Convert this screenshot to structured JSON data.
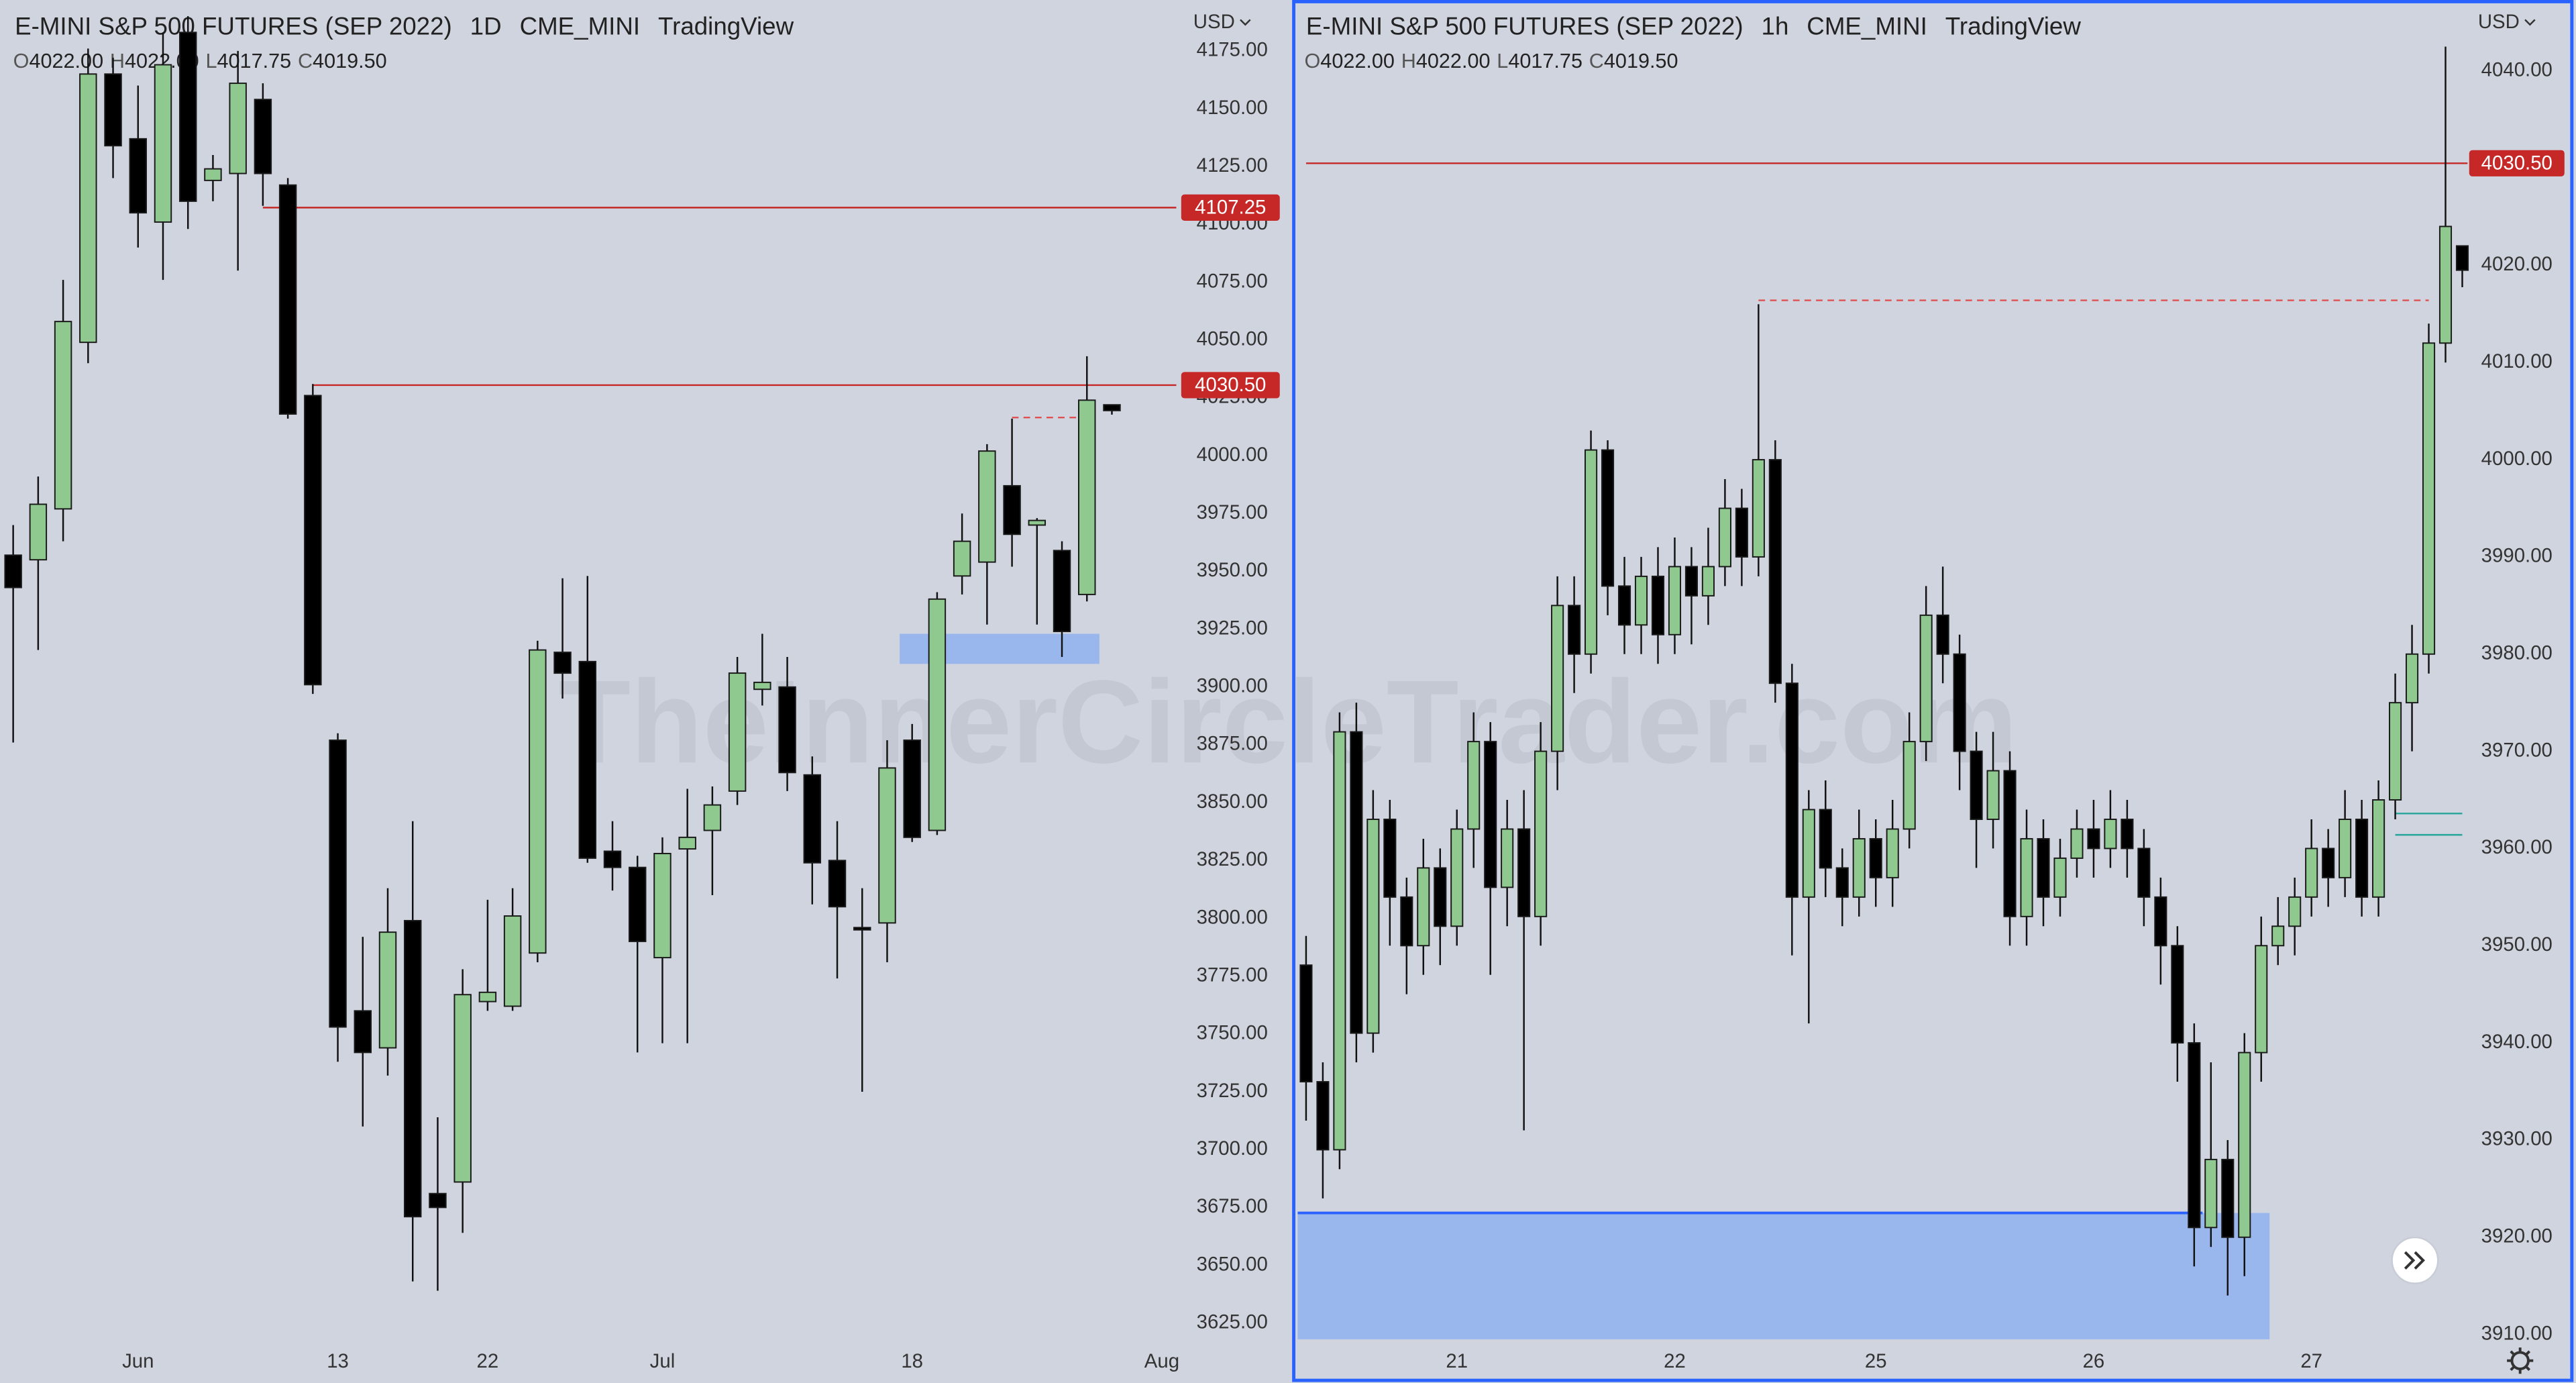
{
  "watermark": "TheInnerCircleTrader.com",
  "chart_data": [
    {
      "type": "candlestick",
      "title": "E-MINI S&P 500 FUTURES (SEP 2022)",
      "interval": "1D",
      "exchange": "CME_MINI",
      "brand": "TradingView",
      "legend_ohlc": [
        [
          "O",
          "4022.00"
        ],
        [
          "H",
          "4022.00"
        ],
        [
          "L",
          "4017.75"
        ],
        [
          "C",
          "4019.50"
        ]
      ],
      "currency": "USD",
      "categories": [
        null,
        null,
        null,
        null,
        null,
        "Jun",
        null,
        null,
        null,
        null,
        null,
        null,
        null,
        "13",
        null,
        null,
        null,
        null,
        null,
        "22",
        null,
        null,
        null,
        null,
        null,
        null,
        "Jul",
        null,
        null,
        null,
        null,
        null,
        null,
        null,
        null,
        null,
        "18",
        null,
        null,
        null,
        null,
        null,
        null,
        null,
        null,
        null,
        "Aug"
      ],
      "open": [
        3957,
        3955,
        3977,
        4049,
        4165,
        4137,
        4101,
        4183,
        4119,
        4122,
        4154,
        4117,
        4026,
        3877,
        3760,
        3744,
        3799,
        3681,
        3686,
        3764,
        3762,
        3785,
        3915,
        3911,
        3829,
        3822,
        3783,
        3830,
        3838,
        3855,
        3899,
        3900,
        3862,
        3825,
        3796,
        3798,
        3877,
        3838,
        3948,
        3954,
        3987,
        3970,
        3959,
        3940,
        4022,
        null,
        null
      ],
      "high": [
        3970,
        3991,
        4076,
        4176,
        4172,
        4160,
        4183,
        4190,
        4130,
        4175,
        4161,
        4120,
        4031,
        3880,
        3792,
        3813,
        3842,
        3714,
        3778,
        3808,
        3813,
        3920,
        3947,
        3948,
        3842,
        3827,
        3835,
        3856,
        3857,
        3913,
        3923,
        3913,
        3870,
        3842,
        3813,
        3877,
        3884,
        3941,
        3975,
        4005,
        4016,
        3973,
        3963,
        4043,
        4022,
        null,
        null
      ],
      "low": [
        3876,
        3916,
        3963,
        4040,
        4120,
        4090,
        4076,
        4098,
        4110,
        4080,
        4108,
        4016,
        3897,
        3738,
        3710,
        3732,
        3643,
        3639,
        3664,
        3760,
        3760,
        3781,
        3895,
        3824,
        3812,
        3742,
        3746,
        3746,
        3810,
        3849,
        3892,
        3855,
        3806,
        3774,
        3725,
        3781,
        3833,
        3836,
        3940,
        3927,
        3952,
        3927,
        3913,
        3937,
        4017.75,
        null,
        null
      ],
      "close": [
        3943,
        3979,
        4058,
        4165,
        4134,
        4105,
        4169,
        4110,
        4124,
        4161,
        4122,
        4018,
        3901,
        3753,
        3742,
        3794,
        3671,
        3675,
        3767,
        3768,
        3801,
        3916,
        3906,
        3826,
        3822,
        3790,
        3828,
        3835,
        3849,
        3906,
        3902,
        3863,
        3824,
        3805,
        3795,
        3865,
        3835,
        3938,
        3963,
        4002,
        3966,
        3972,
        3924,
        4024,
        4019.5,
        null,
        null
      ],
      "up_color": "#8fc98f",
      "down_color": "#000000",
      "ylim": [
        3618,
        4197
      ],
      "yticks": [
        {
          "value": 3625,
          "label": "3625.00"
        },
        {
          "value": 3650,
          "label": "3650.00"
        },
        {
          "value": 3675,
          "label": "3675.00"
        },
        {
          "value": 3700,
          "label": "3700.00"
        },
        {
          "value": 3725,
          "label": "3725.00"
        },
        {
          "value": 3750,
          "label": "3750.00"
        },
        {
          "value": 3775,
          "label": "3775.00"
        },
        {
          "value": 3800,
          "label": "3800.00"
        },
        {
          "value": 3825,
          "label": "3825.00"
        },
        {
          "value": 3850,
          "label": "3850.00"
        },
        {
          "value": 3875,
          "label": "3875.00"
        },
        {
          "value": 3900,
          "label": "3900.00"
        },
        {
          "value": 3925,
          "label": "3925.00"
        },
        {
          "value": 3950,
          "label": "3950.00"
        },
        {
          "value": 3975,
          "label": "3975.00"
        },
        {
          "value": 4000,
          "label": "4000.00"
        },
        {
          "value": 4025,
          "label": "4025.00"
        },
        {
          "value": 4050,
          "label": "4050.00"
        },
        {
          "value": 4075,
          "label": "4075.00"
        },
        {
          "value": 4100,
          "label": "4100.00"
        },
        {
          "value": 4125,
          "label": "4125.00"
        },
        {
          "value": 4150,
          "label": "4150.00"
        },
        {
          "value": 4175,
          "label": "4175.00"
        }
      ],
      "levels": [
        {
          "price": 4107.25,
          "start": 10,
          "color": "#c62828",
          "style": "solid",
          "tag": true
        },
        {
          "price": {
            "value": 4030.5,
            "label": "4030.50"
          },
          "start": 12,
          "color": "#c62828",
          "style": "solid",
          "tag": true
        },
        {
          "price": 4016.5,
          "start": 40,
          "end": 43,
          "color": "#e05050",
          "style": "dashed",
          "tag": false
        }
      ],
      "zones": [
        {
          "low": 3910,
          "high": 3923,
          "start": 36,
          "end": 43,
          "color": "#8fb2f0",
          "edge": false
        }
      ]
    },
    {
      "type": "candlestick",
      "title": "E-MINI S&P 500 FUTURES (SEP 2022)",
      "interval": "1h",
      "exchange": "CME_MINI",
      "brand": "TradingView",
      "legend_ohlc": [
        [
          "O",
          "4022.00"
        ],
        [
          "H",
          "4022.00"
        ],
        [
          "L",
          "4017.75"
        ],
        [
          "C",
          "4019.50"
        ]
      ],
      "currency": "USD",
      "categories": [
        null,
        null,
        null,
        null,
        null,
        null,
        null,
        null,
        null,
        "21",
        null,
        null,
        null,
        null,
        null,
        null,
        null,
        null,
        null,
        null,
        null,
        null,
        "22",
        null,
        null,
        null,
        null,
        null,
        null,
        null,
        null,
        null,
        null,
        null,
        "25",
        null,
        null,
        null,
        null,
        null,
        null,
        null,
        null,
        null,
        null,
        null,
        null,
        "26",
        null,
        null,
        null,
        null,
        null,
        null,
        null,
        null,
        null,
        null,
        null,
        null,
        "27",
        null,
        null,
        null,
        null,
        null,
        null,
        null,
        null,
        null
      ],
      "open": [
        3948,
        3936,
        3929,
        3972,
        3941,
        3963,
        3955,
        3950,
        3958,
        3952,
        3962,
        3971,
        3956,
        3962,
        3953,
        3970,
        3985,
        3980,
        4001,
        3987,
        3983,
        3988,
        3982,
        3989,
        3986,
        3989,
        3995,
        3990,
        4000,
        3977,
        3955,
        3964,
        3958,
        3955,
        3961,
        3957,
        3962,
        3971,
        3984,
        3980,
        3970,
        3963,
        3968,
        3953,
        3961,
        3955,
        3959,
        3962,
        3960,
        3963,
        3960,
        3955,
        3950,
        3940,
        3921,
        3928,
        3920,
        3939,
        3950,
        3952,
        3955,
        3960,
        3957,
        3963,
        3955,
        3965,
        3975,
        3980,
        4012,
        4022
      ],
      "high": [
        3951,
        3938,
        3974,
        3975,
        3966,
        3965,
        3957,
        3961,
        3960,
        3964,
        3974,
        3973,
        3965,
        3966,
        3973,
        3988,
        3988,
        4003,
        4002,
        3990,
        3990,
        3991,
        3992,
        3991,
        3993,
        3998,
        3997,
        4016,
        4002,
        3979,
        3966,
        3967,
        3960,
        3964,
        3963,
        3965,
        3974,
        3987,
        3989,
        3982,
        3972,
        3972,
        3970,
        3964,
        3963,
        3961,
        3964,
        3965,
        3966,
        3965,
        3962,
        3957,
        3952,
        3942,
        3938,
        3930,
        3941,
        3953,
        3955,
        3957,
        3963,
        3962,
        3966,
        3965,
        3967,
        3978,
        3983,
        4014,
        4042.5,
        4022
      ],
      "low": [
        3932,
        3924,
        3927,
        3938,
        3939,
        3950,
        3945,
        3947,
        3948,
        3950,
        3958,
        3947,
        3952,
        3931,
        3950,
        3966,
        3976,
        3978,
        3984,
        3980,
        3980,
        3979,
        3980,
        3981,
        3983,
        3987,
        3987,
        3988,
        3975,
        3949,
        3942,
        3955,
        3952,
        3953,
        3954,
        3954,
        3960,
        3969,
        3977,
        3966,
        3958,
        3960,
        3950,
        3950,
        3952,
        3953,
        3957,
        3957,
        3958,
        3957,
        3952,
        3946,
        3936,
        3917,
        3919,
        3914,
        3916,
        3936,
        3948,
        3949,
        3953,
        3954,
        3955,
        3953,
        3953,
        3963,
        3970,
        3978,
        4010,
        4017.75
      ],
      "close": [
        3936,
        3929,
        3972,
        3941,
        3963,
        3955,
        3950,
        3958,
        3952,
        3962,
        3971,
        3956,
        3962,
        3953,
        3970,
        3985,
        3980,
        4001,
        3987,
        3983,
        3988,
        3982,
        3989,
        3986,
        3989,
        3995,
        3990,
        4000,
        3977,
        3955,
        3964,
        3958,
        3955,
        3961,
        3957,
        3962,
        3971,
        3984,
        3980,
        3970,
        3963,
        3968,
        3953,
        3961,
        3955,
        3959,
        3962,
        3960,
        3963,
        3960,
        3955,
        3950,
        3940,
        3921,
        3928,
        3920,
        3939,
        3950,
        3952,
        3955,
        3960,
        3957,
        3963,
        3955,
        3965,
        3975,
        3980,
        4012,
        4024,
        4019.5
      ],
      "up_color": "#8fc98f",
      "down_color": "#000000",
      "ylim": [
        3909.5,
        4047.3
      ],
      "yticks": [
        {
          "value": 3910,
          "label": "3910.00"
        },
        {
          "value": 3920,
          "label": "3920.00"
        },
        {
          "value": 3930,
          "label": "3930.00"
        },
        {
          "value": 3940,
          "label": "3940.00"
        },
        {
          "value": 3950,
          "label": "3950.00"
        },
        {
          "value": 3960,
          "label": "3960.00"
        },
        {
          "value": 3970,
          "label": "3970.00"
        },
        {
          "value": 3980,
          "label": "3980.00"
        },
        {
          "value": 3990,
          "label": "3990.00"
        },
        {
          "value": 4000,
          "label": "4000.00"
        },
        {
          "value": 4010,
          "label": "4010.00"
        },
        {
          "value": 4020,
          "label": "4020.00"
        },
        {
          "value": 4030,
          "label": "4030.00"
        },
        {
          "value": 4040,
          "label": "4040.00"
        }
      ],
      "levels": [
        {
          "price": {
            "value": 4030.5,
            "label": "4030.50"
          },
          "start": 0,
          "color": "#c62828",
          "style": "solid",
          "tag": true
        },
        {
          "price": 4016.4,
          "start": 27,
          "end": 67,
          "color": "#e05050",
          "style": "dashed",
          "tag": false
        },
        {
          "price": 3963.6,
          "start": 65,
          "end": 69,
          "color": "#26a69a",
          "style": "solid",
          "tag": false
        },
        {
          "price": 3961.4,
          "start": 65,
          "end": 69,
          "color": "#26a69a",
          "style": "solid",
          "tag": false
        }
      ],
      "zones": [
        {
          "low": 3909.5,
          "high": 3922.5,
          "start": 0,
          "end": 57,
          "color": "#8fb2f0",
          "edge": true
        }
      ]
    }
  ]
}
